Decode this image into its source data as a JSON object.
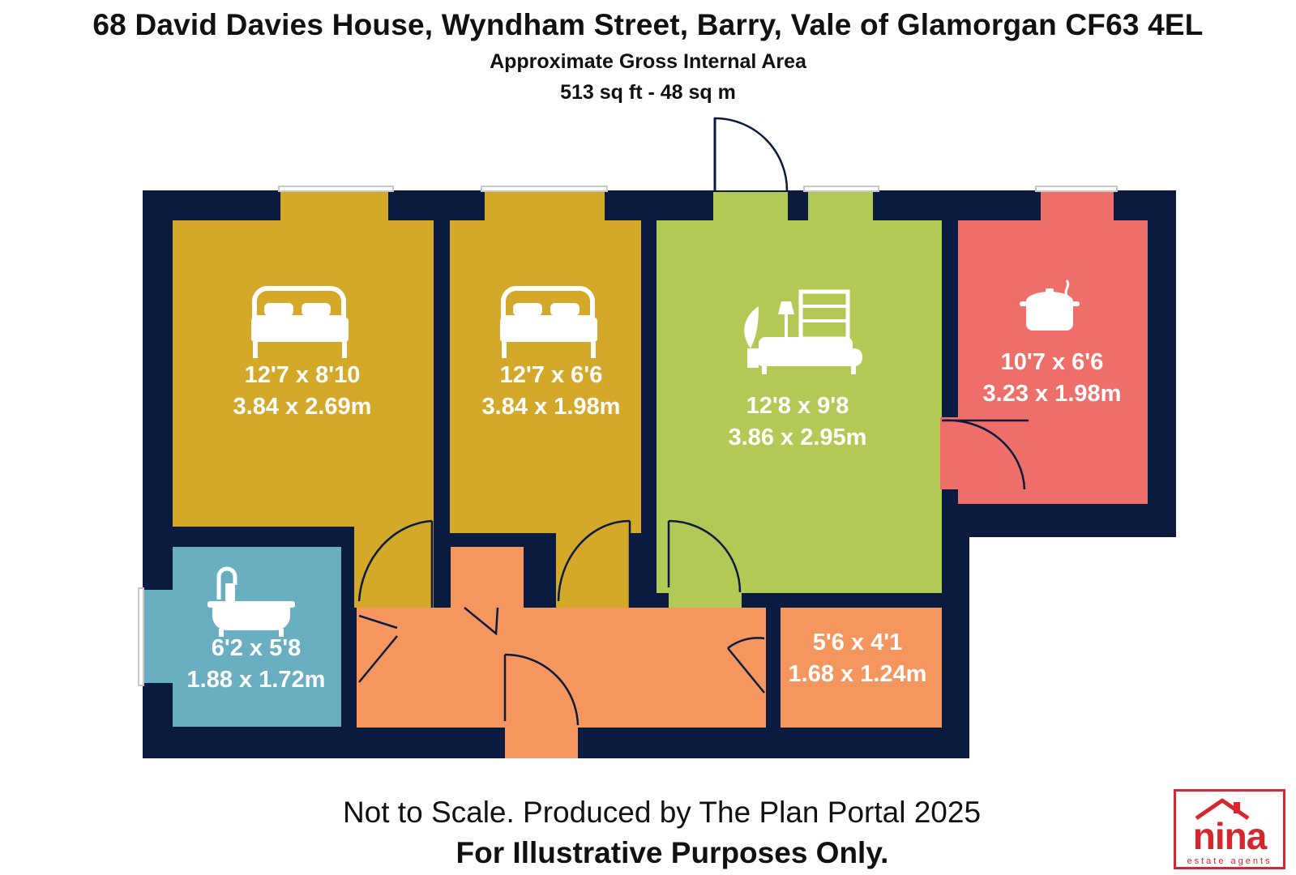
{
  "header": {
    "title": "68 David Davies House, Wyndham Street, Barry, Vale of Glamorgan CF63 4EL",
    "subtitle": "Approximate Gross Internal Area",
    "area": "513 sq ft - 48 sq m"
  },
  "rooms": [
    {
      "id": "bedroom-1",
      "icon": "bed-icon",
      "imperial": "12'7 x 8'10",
      "metric": "3.84 x 2.69m",
      "color": "#D4A828"
    },
    {
      "id": "bedroom-2",
      "icon": "bed-icon",
      "imperial": "12'7 x 6'6",
      "metric": "3.84 x 1.98m",
      "color": "#D4A828"
    },
    {
      "id": "living-room",
      "icon": "sofa-icon",
      "imperial": "12'8 x 9'8",
      "metric": "3.86 x 2.95m",
      "color": "#B3C955"
    },
    {
      "id": "kitchen",
      "icon": "cooking-pot-icon",
      "imperial": "10'7 x 6'6",
      "metric": "3.23 x 1.98m",
      "color": "#EE6E6A"
    },
    {
      "id": "bathroom",
      "icon": "bathtub-icon",
      "imperial": "6'2 x 5'8",
      "metric": "1.88 x 1.72m",
      "color": "#6AAFC1"
    },
    {
      "id": "storage",
      "icon": "",
      "imperial": "5'6 x 4'1",
      "metric": "1.68 x 1.24m",
      "color": "#F5965E"
    }
  ],
  "colors": {
    "walls": "#0B1B3F",
    "hallway": "#F5965E"
  },
  "footer": {
    "note": "Not to Scale. Produced by The Plan Portal 2025",
    "disclaimer": "For Illustrative Purposes Only."
  },
  "logo": {
    "brand": "nina",
    "tagline": "estate agents",
    "color": "#D8262E"
  }
}
